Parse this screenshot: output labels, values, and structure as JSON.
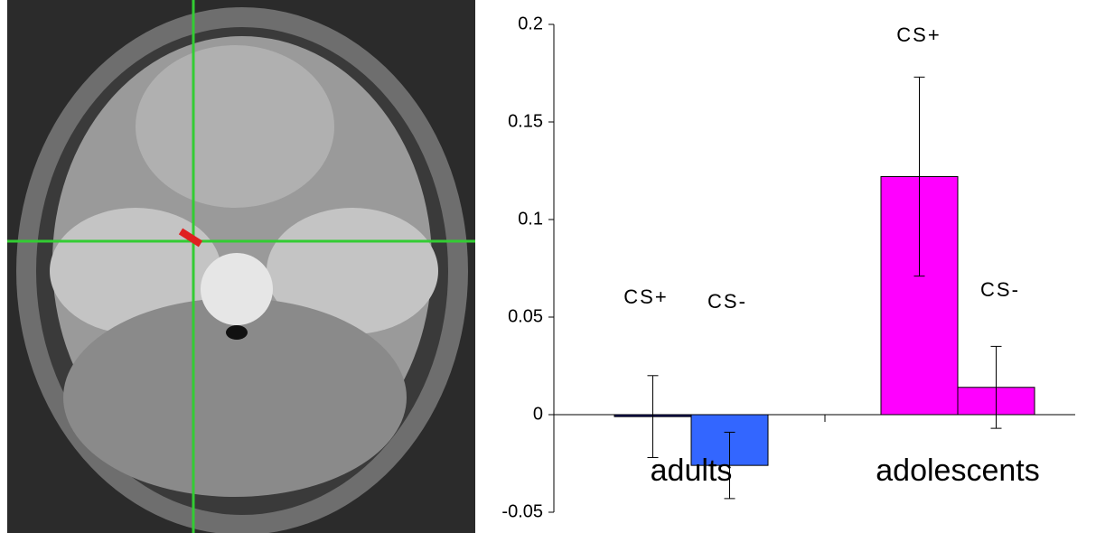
{
  "chart_data": {
    "type": "bar",
    "categories": [
      "adults",
      "adolescents"
    ],
    "series": [
      {
        "name": "CS+",
        "colors": [
          "#000066",
          "#ff00ff"
        ],
        "values": [
          -0.001,
          0.122
        ],
        "errors": [
          0.021,
          0.051
        ]
      },
      {
        "name": "CS-",
        "colors": [
          "#3366ff",
          "#ff00ff"
        ],
        "values": [
          -0.026,
          0.014
        ],
        "errors": [
          0.017,
          0.021
        ]
      }
    ],
    "ylim": [
      -0.05,
      0.2
    ],
    "yticks": [
      -0.05,
      0,
      0.05,
      0.1,
      0.15,
      0.2
    ]
  }
}
